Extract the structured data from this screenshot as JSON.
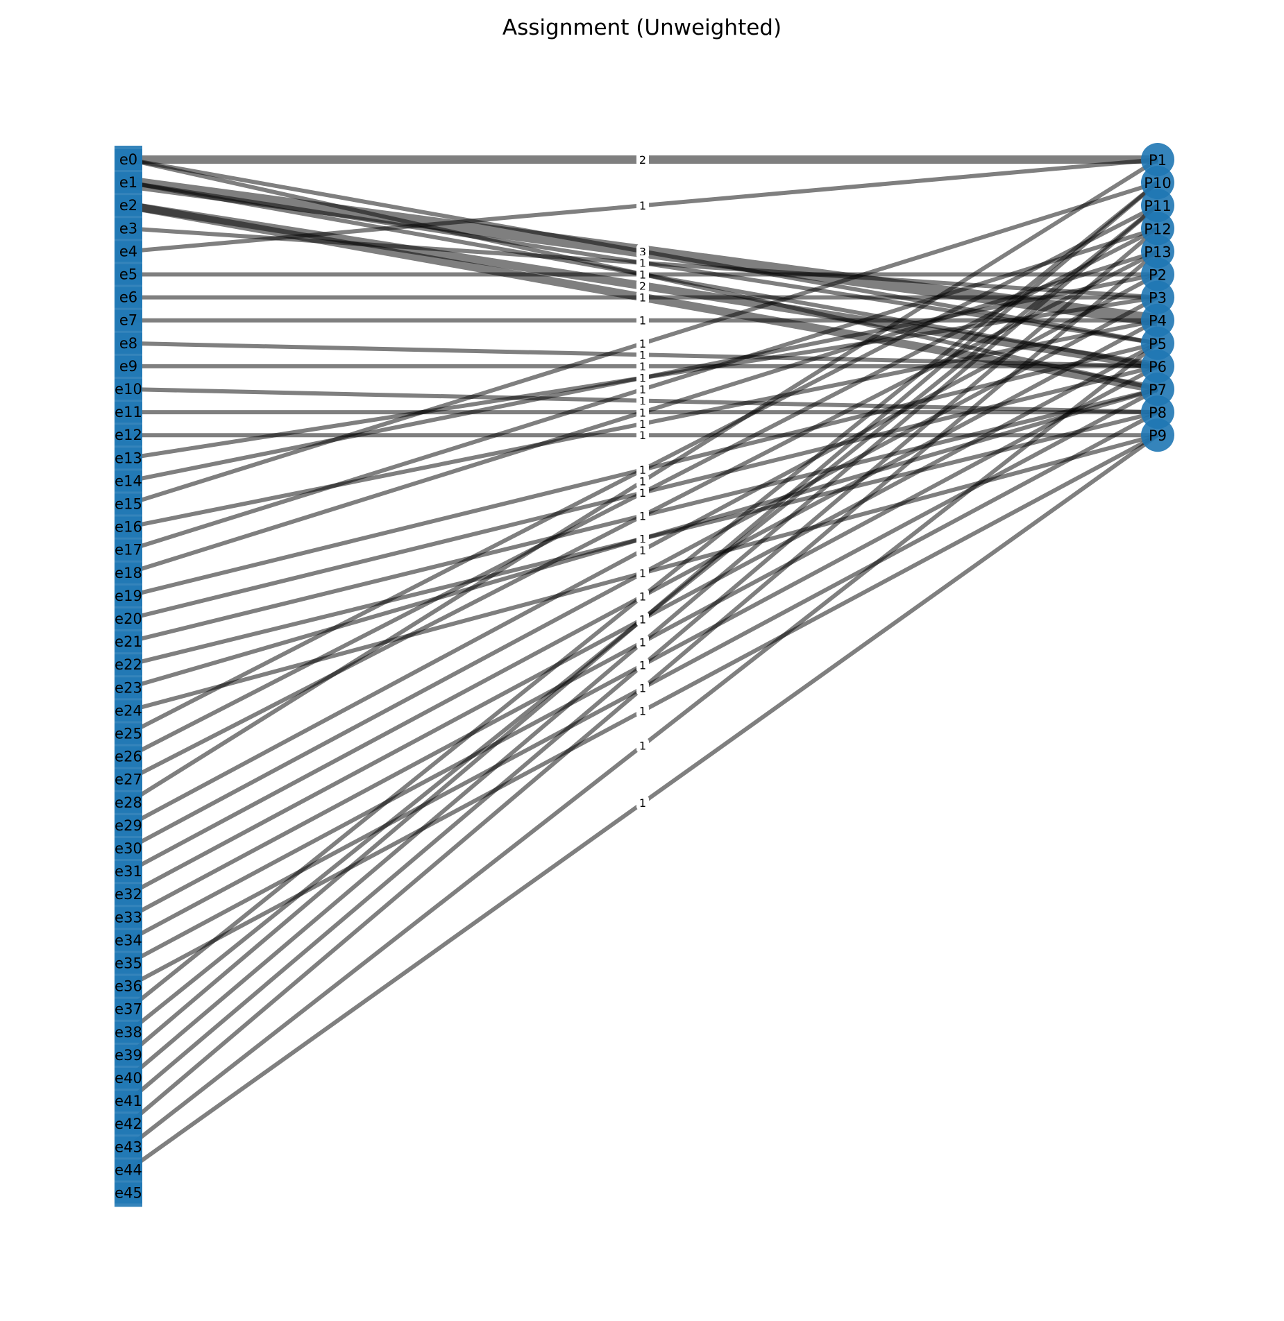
{
  "title": "Assignment (Unweighted)",
  "colors": {
    "node": "#1f77b4",
    "edge": "#000000",
    "label_bg": "#ffffff"
  },
  "left_nodes": [
    "e0",
    "e1",
    "e2",
    "e3",
    "e4",
    "e5",
    "e6",
    "e7",
    "e8",
    "e9",
    "e10",
    "e11",
    "e12",
    "e13",
    "e14",
    "e15",
    "e16",
    "e17",
    "e18",
    "e19",
    "e20",
    "e21",
    "e22",
    "e23",
    "e24",
    "e25",
    "e26",
    "e27",
    "e28",
    "e29",
    "e30",
    "e31",
    "e32",
    "e33",
    "e34",
    "e35",
    "e36",
    "e37",
    "e38",
    "e39",
    "e40",
    "e41",
    "e42",
    "e43",
    "e44",
    "e45"
  ],
  "right_nodes": [
    "P1",
    "P10",
    "P11",
    "P12",
    "P13",
    "P2",
    "P3",
    "P4",
    "P5",
    "P6",
    "P7",
    "P8",
    "P9"
  ],
  "edges": [
    {
      "source": "e0",
      "target": "P1",
      "weight": "2"
    },
    {
      "source": "e0",
      "target": "P5",
      "weight": "1"
    },
    {
      "source": "e0",
      "target": "P7",
      "weight": "1"
    },
    {
      "source": "e1",
      "target": "P4",
      "weight": "3"
    },
    {
      "source": "e1",
      "target": "P5",
      "weight": "1"
    },
    {
      "source": "e1",
      "target": "P6",
      "weight": "1"
    },
    {
      "source": "e2",
      "target": "P6",
      "weight": "2"
    },
    {
      "source": "e2",
      "target": "P7",
      "weight": "2"
    },
    {
      "source": "e3",
      "target": "P3",
      "weight": "1"
    },
    {
      "source": "e4",
      "target": "P1",
      "weight": "1"
    },
    {
      "source": "e5",
      "target": "P2",
      "weight": "1"
    },
    {
      "source": "e6",
      "target": "P3",
      "weight": "1"
    },
    {
      "source": "e7",
      "target": "P4",
      "weight": "1"
    },
    {
      "source": "e8",
      "target": "P6",
      "weight": "1"
    },
    {
      "source": "e9",
      "target": "P6",
      "weight": "1"
    },
    {
      "source": "e10",
      "target": "P8",
      "weight": "1"
    },
    {
      "source": "e11",
      "target": "P8",
      "weight": "1"
    },
    {
      "source": "e12",
      "target": "P9",
      "weight": "1"
    },
    {
      "source": "e13",
      "target": "P3",
      "weight": "1"
    },
    {
      "source": "e14",
      "target": "P2",
      "weight": "1"
    },
    {
      "source": "e15",
      "target": "P10",
      "weight": "1"
    },
    {
      "source": "e16",
      "target": "P4",
      "weight": "1"
    },
    {
      "source": "e17",
      "target": "P12",
      "weight": "1"
    },
    {
      "source": "e18",
      "target": "P13",
      "weight": "1"
    },
    {
      "source": "e19",
      "target": "P5",
      "weight": "1"
    },
    {
      "source": "e20",
      "target": "P6",
      "weight": "1"
    },
    {
      "source": "e21",
      "target": "P7",
      "weight": "1"
    },
    {
      "source": "e22",
      "target": "P8",
      "weight": "1"
    },
    {
      "source": "e23",
      "target": "P7",
      "weight": "1"
    },
    {
      "source": "e24",
      "target": "P9",
      "weight": "1"
    },
    {
      "source": "e25",
      "target": "P11",
      "weight": "1"
    },
    {
      "source": "e26",
      "target": "P12",
      "weight": "1"
    },
    {
      "source": "e27",
      "target": "P13",
      "weight": "1"
    },
    {
      "source": "e28",
      "target": "P1",
      "weight": "1"
    },
    {
      "source": "e29",
      "target": "P2",
      "weight": "1"
    },
    {
      "source": "e30",
      "target": "P3",
      "weight": "1"
    },
    {
      "source": "e31",
      "target": "P4",
      "weight": "1"
    },
    {
      "source": "e32",
      "target": "P5",
      "weight": "1"
    },
    {
      "source": "e33",
      "target": "P6",
      "weight": "1"
    },
    {
      "source": "e34",
      "target": "P7",
      "weight": "1"
    },
    {
      "source": "e35",
      "target": "P8",
      "weight": "1"
    },
    {
      "source": "e36",
      "target": "P9",
      "weight": "1"
    },
    {
      "source": "e37",
      "target": "P10",
      "weight": "1"
    },
    {
      "source": "e38",
      "target": "P11",
      "weight": "1"
    },
    {
      "source": "e39",
      "target": "P10",
      "weight": "1"
    },
    {
      "source": "e40",
      "target": "P11",
      "weight": "1"
    },
    {
      "source": "e41",
      "target": "P12",
      "weight": "1"
    },
    {
      "source": "e42",
      "target": "P13",
      "weight": "1"
    },
    {
      "source": "e43",
      "target": "P5",
      "weight": "1"
    },
    {
      "source": "e44",
      "target": "P9",
      "weight": "1"
    }
  ]
}
